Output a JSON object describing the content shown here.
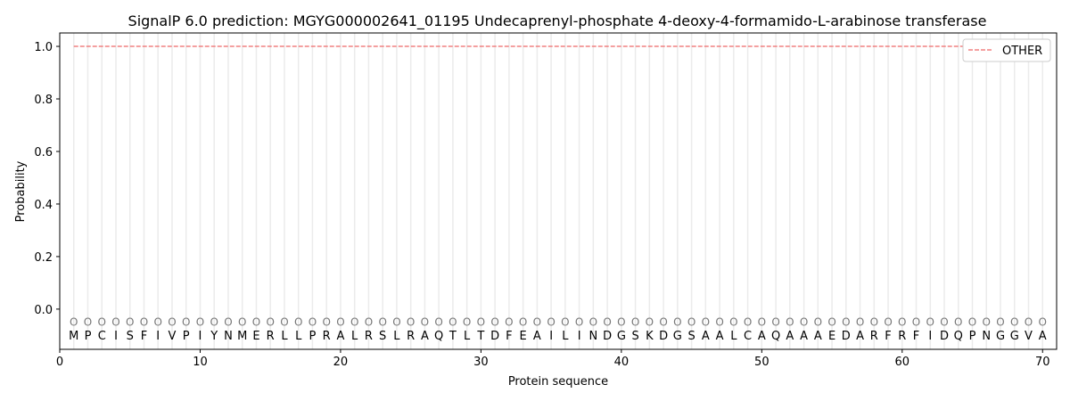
{
  "chart_data": {
    "type": "line",
    "title": "SignalP 6.0 prediction: MGYG000002641_01195 Undecaprenyl-phosphate 4-deoxy-4-formamido-L-arabinose transferase",
    "xlabel": "Protein sequence",
    "ylabel": "Probability",
    "xlim": [
      0,
      71
    ],
    "ylim": [
      -0.153,
      1.051
    ],
    "xticks": [
      0,
      10,
      20,
      30,
      40,
      50,
      60,
      70
    ],
    "yticks": [
      "0.0",
      "0.2",
      "0.4",
      "0.6",
      "0.8",
      "1.0"
    ],
    "sequence": [
      "M",
      "P",
      "C",
      "I",
      "S",
      "F",
      "I",
      "V",
      "P",
      "I",
      "Y",
      "N",
      "M",
      "E",
      "R",
      "L",
      "L",
      "P",
      "R",
      "A",
      "L",
      "R",
      "S",
      "L",
      "R",
      "A",
      "Q",
      "T",
      "L",
      "T",
      "D",
      "F",
      "E",
      "A",
      "I",
      "L",
      "I",
      "N",
      "D",
      "G",
      "S",
      "K",
      "D",
      "G",
      "S",
      "A",
      "A",
      "L",
      "C",
      "A",
      "Q",
      "A",
      "A",
      "A",
      "E",
      "D",
      "A",
      "R",
      "F",
      "R",
      "F",
      "I",
      "D",
      "Q",
      "P",
      "N",
      "G",
      "G",
      "V",
      "A"
    ],
    "predicted_label": "O",
    "series": [
      {
        "name": "OTHER",
        "color": "#f08080",
        "style": "dashed",
        "x_range": [
          1,
          70
        ],
        "value": 1.0
      }
    ],
    "legend": "top-right",
    "grid": "vertical lines at each residue"
  }
}
